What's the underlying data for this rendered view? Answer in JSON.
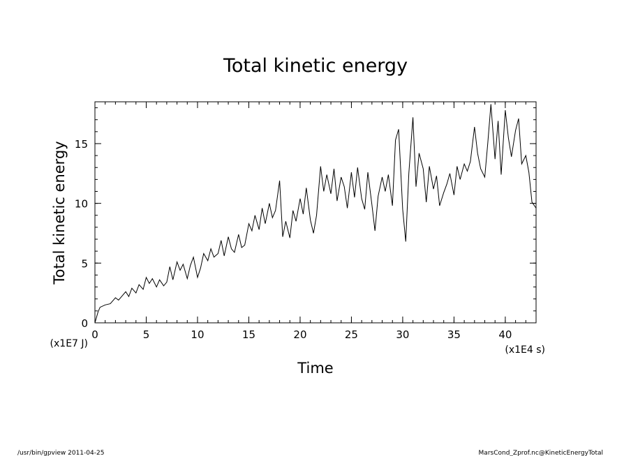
{
  "chart_data": {
    "type": "line",
    "title": "Total kinetic energy",
    "xlabel": "Time",
    "ylabel": "Total kinetic energy",
    "x_unit": "(x1E4 s)",
    "y_unit": "(x1E7 J)",
    "xlim": [
      0,
      43
    ],
    "ylim": [
      0,
      18.5
    ],
    "x_ticks": [
      0,
      5,
      10,
      15,
      20,
      25,
      30,
      35,
      40
    ],
    "y_ticks": [
      0,
      5,
      10,
      15
    ],
    "grid": false,
    "series": [
      {
        "x": [
          0.0,
          0.3,
          0.5,
          1.0,
          1.5,
          2.0,
          2.3,
          2.7,
          3.0,
          3.3,
          3.6,
          4.0,
          4.3,
          4.7,
          5.0,
          5.3,
          5.6,
          6.0,
          6.3,
          6.7,
          7.0,
          7.3,
          7.6,
          8.0,
          8.3,
          8.6,
          9.0,
          9.3,
          9.6,
          10.0,
          10.3,
          10.6,
          11.0,
          11.3,
          11.6,
          12.0,
          12.3,
          12.6,
          13.0,
          13.3,
          13.6,
          14.0,
          14.3,
          14.6,
          15.0,
          15.3,
          15.6,
          16.0,
          16.3,
          16.6,
          17.0,
          17.3,
          17.6,
          18.0,
          18.3,
          18.6,
          19.0,
          19.3,
          19.6,
          20.0,
          20.3,
          20.6,
          21.0,
          21.3,
          21.6,
          22.0,
          22.3,
          22.6,
          23.0,
          23.3,
          23.6,
          24.0,
          24.3,
          24.6,
          25.0,
          25.3,
          25.6,
          26.0,
          26.3,
          26.6,
          27.0,
          27.3,
          27.6,
          28.0,
          28.3,
          28.6,
          29.0,
          29.3,
          29.6,
          30.0,
          30.3,
          30.6,
          31.0,
          31.3,
          31.6,
          32.0,
          32.3,
          32.6,
          33.0,
          33.3,
          33.6,
          34.0,
          34.3,
          34.6,
          35.0,
          35.3,
          35.6,
          36.0,
          36.3,
          36.6,
          37.0,
          37.3,
          37.6,
          38.0,
          38.3,
          38.6,
          39.0,
          39.3,
          39.6,
          40.0,
          40.3,
          40.6,
          41.0,
          41.3,
          41.6,
          42.0,
          42.3,
          42.6,
          43.0
        ],
        "values": [
          0.0,
          0.9,
          1.3,
          1.5,
          1.6,
          2.1,
          1.9,
          2.3,
          2.6,
          2.2,
          2.9,
          2.5,
          3.2,
          2.8,
          3.8,
          3.3,
          3.7,
          3.0,
          3.6,
          3.1,
          3.4,
          4.7,
          3.6,
          5.1,
          4.4,
          4.9,
          3.7,
          4.8,
          5.5,
          3.8,
          4.6,
          5.8,
          5.2,
          6.2,
          5.5,
          5.8,
          6.9,
          5.6,
          7.2,
          6.2,
          5.9,
          7.4,
          6.3,
          6.5,
          8.3,
          7.7,
          9.0,
          7.8,
          9.6,
          8.3,
          10.0,
          8.8,
          9.4,
          11.9,
          7.2,
          8.5,
          7.1,
          9.4,
          8.5,
          10.4,
          9.1,
          11.3,
          8.6,
          7.5,
          9.0,
          13.1,
          11.0,
          12.4,
          10.8,
          12.9,
          10.2,
          12.2,
          11.4,
          9.6,
          12.6,
          10.5,
          13.0,
          10.4,
          9.5,
          12.6,
          9.9,
          7.7,
          10.6,
          12.2,
          11.0,
          12.4,
          9.8,
          15.3,
          16.2,
          9.5,
          6.8,
          12.5,
          17.2,
          11.4,
          14.2,
          12.9,
          10.1,
          13.1,
          11.2,
          12.3,
          9.8,
          10.9,
          11.6,
          12.5,
          10.7,
          13.1,
          12.0,
          13.3,
          12.7,
          13.5,
          16.4,
          14.2,
          12.9,
          12.2,
          15.1,
          18.3,
          13.7,
          16.9,
          12.4,
          17.8,
          15.5,
          13.9,
          16.1,
          17.1,
          13.3,
          14.0,
          12.6,
          10.1,
          9.6
        ]
      }
    ]
  },
  "footer": {
    "left": "/usr/bin/gpview   2011-04-25",
    "right": "MarsCond_Zprof.nc@KineticEnergyTotal"
  }
}
